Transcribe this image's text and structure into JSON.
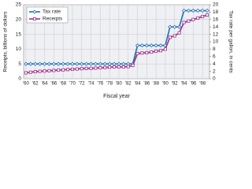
{
  "chart_data": {
    "type": "line",
    "x_label": "Fiscal year",
    "y_label": "Receipts, billions of dollars",
    "y2_label": "Tax rate per gallon, in cents",
    "categories": [
      "'60",
      null,
      "'62",
      null,
      "'64",
      null,
      "'66",
      null,
      "'68",
      null,
      "'70",
      null,
      "'72",
      null,
      "'74",
      null,
      "'76",
      null,
      "'78",
      null,
      "'80",
      null,
      "'82",
      null,
      "'84",
      null,
      "'86",
      null,
      "'88",
      null,
      "'90",
      null,
      "'92",
      null,
      "'94",
      null,
      "'96",
      null,
      "'98",
      null
    ],
    "series": [
      {
        "name": "Tax rate",
        "color": "#1f6fb5",
        "axis": "y2",
        "marker": "diamond",
        "values": [
          4,
          4,
          4,
          4,
          4,
          4,
          4,
          4,
          4,
          4,
          4,
          4,
          4,
          4,
          4,
          4,
          4,
          4,
          4,
          4,
          4,
          4,
          4,
          4,
          9,
          9,
          9,
          9,
          9,
          9,
          9,
          14,
          14,
          14,
          18.4,
          18.4,
          18.4,
          18.4,
          18.4,
          18.4
        ]
      },
      {
        "name": "Receipts",
        "color": "#a0308a",
        "marker": "square",
        "values": [
          2.0,
          2.2,
          2.4,
          2.5,
          2.6,
          2.7,
          2.8,
          2.9,
          3.0,
          3.1,
          3.2,
          3.3,
          3.4,
          3.5,
          3.5,
          3.6,
          3.7,
          3.8,
          3.9,
          4.0,
          4.0,
          4.0,
          4.1,
          4.5,
          8.5,
          8.7,
          8.8,
          9.0,
          9.3,
          9.5,
          10.0,
          14.0,
          14.5,
          15.5,
          19.0,
          19.5,
          20.0,
          20.5,
          21.0,
          21.5
        ]
      }
    ],
    "ylim": [
      0,
      25
    ],
    "yticks": [
      0,
      5,
      10,
      15,
      20,
      25
    ],
    "y2lim": [
      0,
      20
    ],
    "y2ticks": [
      0,
      2,
      4,
      6,
      8,
      10,
      12,
      14,
      16,
      18,
      20
    ],
    "grid": true,
    "legend": "top-left"
  }
}
